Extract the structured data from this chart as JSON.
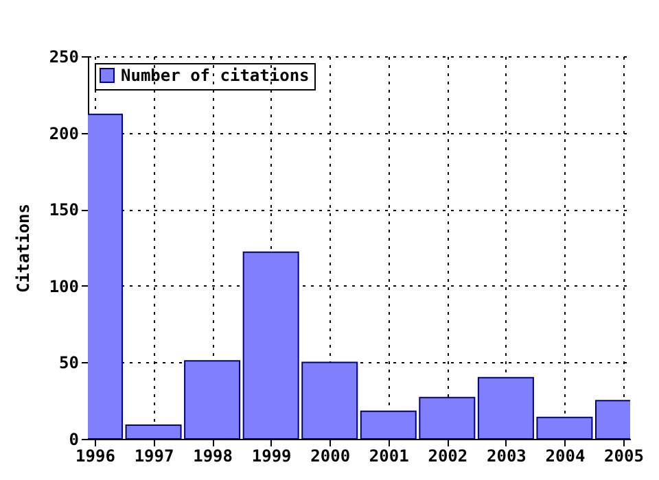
{
  "chart_data": {
    "type": "bar",
    "ylabel": "Citations",
    "x": [
      1996,
      1997,
      1998,
      1999,
      2000,
      2001,
      2002,
      2003,
      2004,
      2005
    ],
    "series": [
      {
        "name": "Number of citations",
        "color": "#8080ff",
        "values": [
          212,
          9,
          51,
          122,
          50,
          18,
          27,
          40,
          14,
          25
        ]
      }
    ],
    "xlim": [
      1996,
      2005
    ],
    "xticks": [
      1996,
      1997,
      1998,
      1999,
      2000,
      2001,
      2002,
      2003,
      2004,
      2005
    ],
    "ylim": [
      0,
      250
    ],
    "yticks": [
      0,
      50,
      100,
      150,
      200,
      250
    ],
    "grid": true,
    "legend": "top left"
  }
}
